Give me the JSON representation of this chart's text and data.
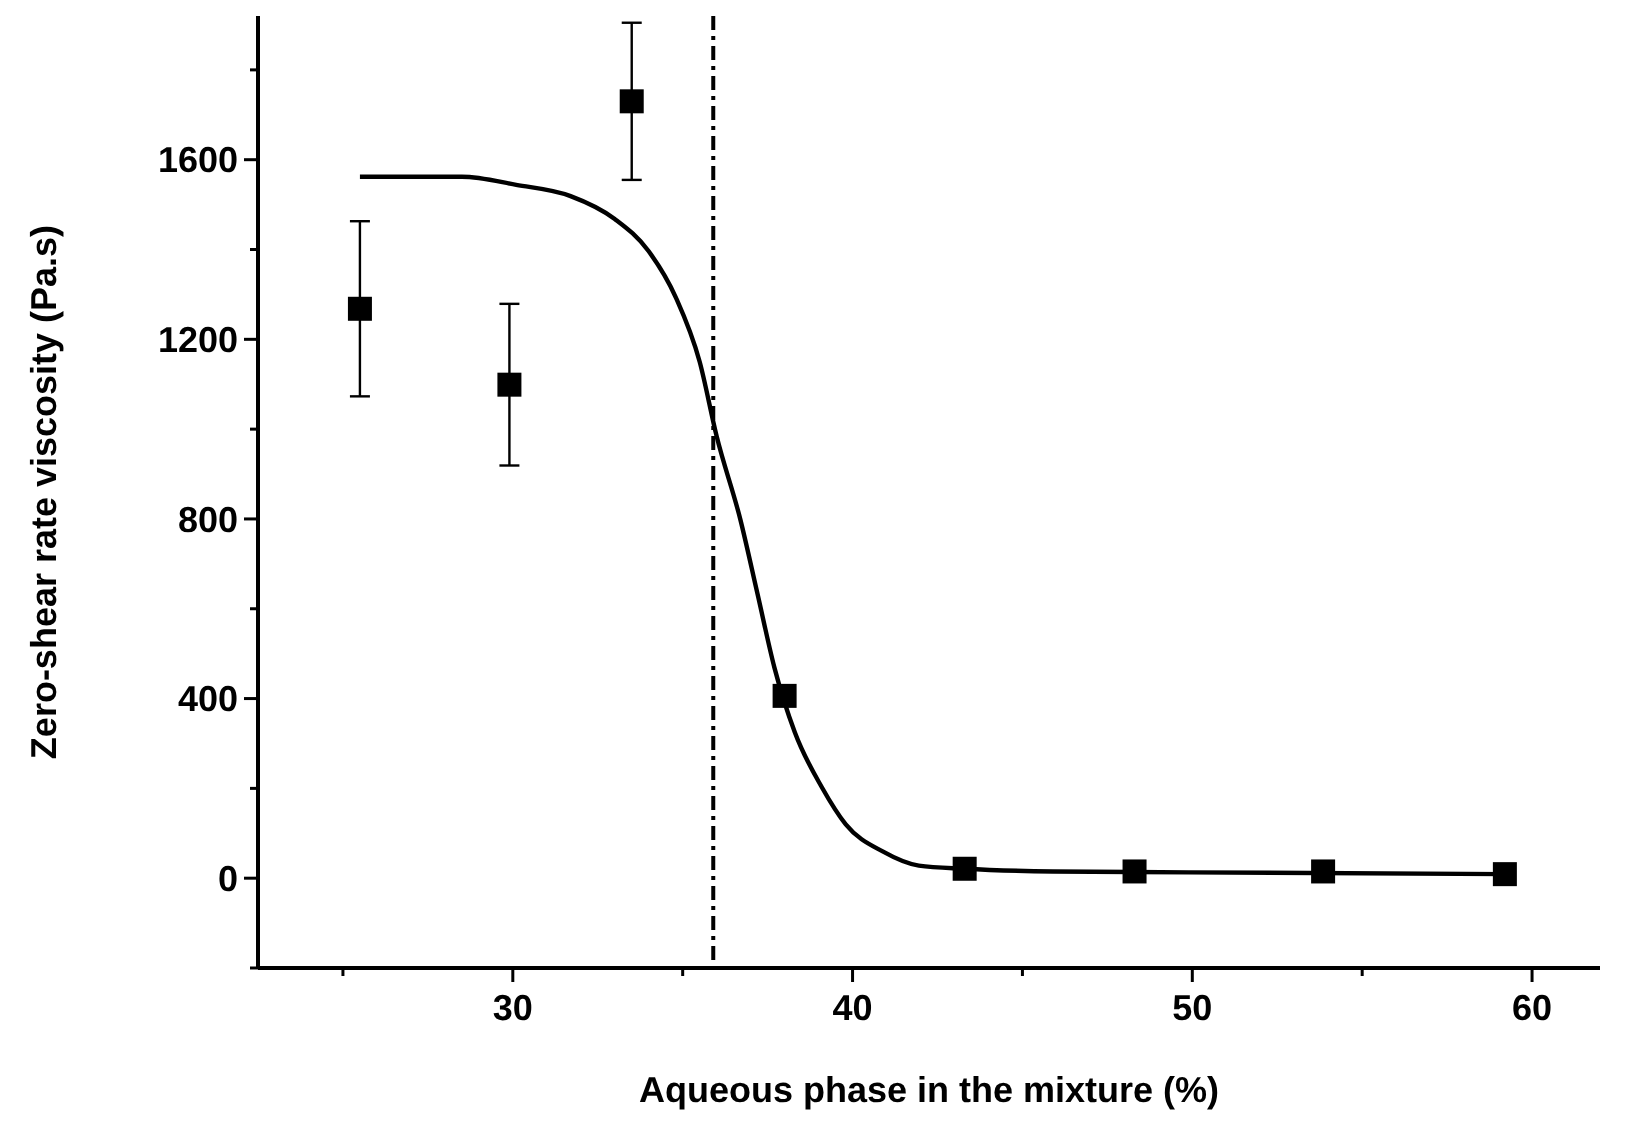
{
  "chart_data": {
    "type": "scatter",
    "xlabel": "Aqueous phase in the mixture (%)",
    "ylabel": "Zero-shear rate viscosity (Pa.s)",
    "xlim": [
      22.5,
      62
    ],
    "ylim": [
      -200,
      1920
    ],
    "xticks": [
      {
        "value": 25,
        "label": null
      },
      30,
      {
        "value": 35,
        "label": null
      },
      40,
      {
        "value": 45,
        "label": null
      },
      50,
      {
        "value": 55,
        "label": null
      },
      60
    ],
    "yticks": [
      {
        "value": -200,
        "label": null
      },
      0,
      {
        "value": 200,
        "label": null
      },
      400,
      {
        "value": 600,
        "label": null
      },
      800,
      {
        "value": 1000,
        "label": null
      },
      1200,
      {
        "value": 1400,
        "label": null
      },
      1600,
      {
        "value": 1800,
        "label": null
      }
    ],
    "grid": false,
    "ref_lines": [
      {
        "axis": "x",
        "value": 35.9,
        "color": "#000000",
        "line_style": "dashdot"
      }
    ],
    "series": [
      {
        "color": "#000000",
        "marker": "square",
        "x": [
          25.5,
          29.9,
          33.5,
          38.0,
          43.3,
          48.3,
          53.85,
          59.2
        ],
        "values": [
          1268,
          1099,
          1730,
          406,
          21,
          15,
          15,
          9
        ],
        "errors": [
          195,
          180,
          175,
          null,
          null,
          null,
          null,
          null
        ]
      },
      {
        "type": "line",
        "color": "#000000",
        "marker": "none",
        "line_style": "solid",
        "x": [
          25.5,
          28.5,
          30.1,
          31.7,
          33.0,
          34.0,
          34.8,
          35.5,
          36.0,
          36.7,
          37.2,
          37.7,
          38.3,
          39.1,
          39.8,
          40.9,
          41.95,
          43.3,
          45.9,
          49.9,
          59.2
        ],
        "values": [
          1562,
          1562,
          1544,
          1519,
          1468,
          1396,
          1293,
          1150,
          984,
          798,
          634,
          469,
          325,
          202,
          120,
          59,
          28,
          21,
          15,
          13,
          9
        ]
      }
    ]
  }
}
